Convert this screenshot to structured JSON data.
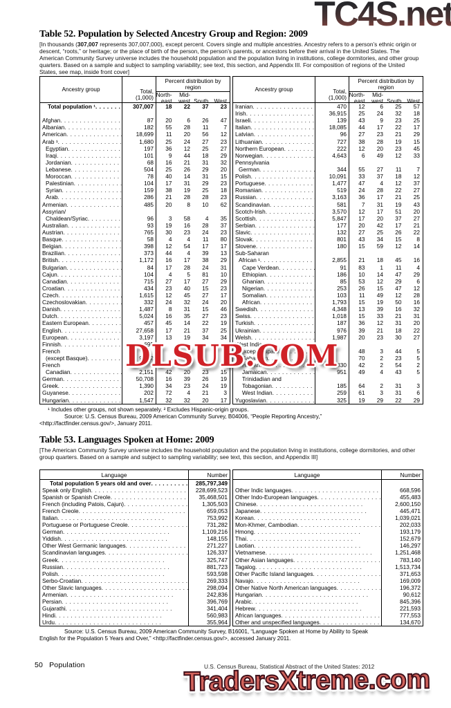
{
  "watermarks": {
    "top": {
      "text": "TC4S.net",
      "color": "#3a3a3a"
    },
    "middle": {
      "text": "DLSUB.COM",
      "color": "#cf2127"
    },
    "bottom": {
      "text": "TradersXtreme.com",
      "color": "#d2635c"
    }
  },
  "table52": {
    "title": "Table 52. Population by Selected Ancestry Group and Region: 2009",
    "note_pre": "[In thousands (",
    "note_bold": "307,007",
    "note_post": " represents 307,007,000), except percent. Covers single and multiple ancestries. Ancestry refers to a person’s ethnic origin or descent, “roots,” or heritage; or the place of birth of the person, the person’s parents, or ancestors before their arrival in the United States. The American Community Survey universe includes the household population and the population living in institutions, college dormitories, and other group quarters. Based on a sample and subject to sampling variability; see text, this section, and Appendix III. For composition of regions of the United States, see map, inside front cover]",
    "headers": {
      "group": "Ancestry group",
      "total_l1": "Total,",
      "total_l2": "(1,000)",
      "span": "Percent distribution by region",
      "regions": [
        [
          "North-",
          "east"
        ],
        [
          "Mid-",
          "west"
        ],
        [
          "",
          "South"
        ],
        [
          "",
          "West"
        ]
      ]
    },
    "left_rows": [
      {
        "l": "Total population ¹",
        "b": 1,
        "t": "307,007",
        "p": [
          "18",
          "22",
          "37",
          "23"
        ]
      },
      {
        "l": "",
        "lo": 1
      },
      {
        "l": "Afghan",
        "t": "87",
        "p": [
          "20",
          "6",
          "26",
          "47"
        ]
      },
      {
        "l": "Albanian",
        "t": "182",
        "p": [
          "55",
          "28",
          "11",
          "7"
        ]
      },
      {
        "l": "American",
        "t": "18,699",
        "p": [
          "11",
          "20",
          "56",
          "12"
        ]
      },
      {
        "l": "Arab ¹",
        "t": "1,680",
        "p": [
          "25",
          "24",
          "27",
          "23"
        ]
      },
      {
        "l": "Egyptian",
        "i": 1,
        "t": "197",
        "p": [
          "36",
          "12",
          "25",
          "27"
        ]
      },
      {
        "l": "Iraqi",
        "i": 1,
        "t": "101",
        "p": [
          "9",
          "44",
          "18",
          "29"
        ]
      },
      {
        "l": "Jordanian",
        "i": 1,
        "t": "68",
        "p": [
          "16",
          "21",
          "31",
          "32"
        ]
      },
      {
        "l": "Lebanese",
        "i": 1,
        "t": "504",
        "p": [
          "25",
          "26",
          "29",
          "20"
        ]
      },
      {
        "l": "Moroccan",
        "i": 1,
        "t": "78",
        "p": [
          "40",
          "14",
          "31",
          "15"
        ]
      },
      {
        "l": "Palestinian",
        "i": 1,
        "t": "104",
        "p": [
          "17",
          "31",
          "29",
          "23"
        ]
      },
      {
        "l": "Syrian",
        "i": 1,
        "t": "159",
        "p": [
          "38",
          "19",
          "25",
          "18"
        ]
      },
      {
        "l": "Arab",
        "i": 1,
        "t": "286",
        "p": [
          "21",
          "28",
          "28",
          "23"
        ]
      },
      {
        "l": "Armenian",
        "t": "485",
        "p": [
          "20",
          "8",
          "10",
          "62"
        ]
      },
      {
        "l": "Assyrian/",
        "lo": 1
      },
      {
        "l": "Chaldean/Syriac",
        "i": 1,
        "t": "96",
        "p": [
          "3",
          "58",
          "4",
          "35"
        ]
      },
      {
        "l": "Australian",
        "t": "93",
        "p": [
          "19",
          "16",
          "28",
          "37"
        ]
      },
      {
        "l": "Austrian",
        "t": "765",
        "p": [
          "30",
          "23",
          "24",
          "23"
        ]
      },
      {
        "l": "Basque",
        "t": "58",
        "p": [
          "4",
          "4",
          "11",
          "80"
        ]
      },
      {
        "l": "Belgian",
        "t": "398",
        "p": [
          "12",
          "54",
          "17",
          "17"
        ]
      },
      {
        "l": "Brazilian",
        "t": "373",
        "p": [
          "44",
          "4",
          "39",
          "13"
        ]
      },
      {
        "l": "British",
        "t": "1,172",
        "p": [
          "16",
          "17",
          "38",
          "29"
        ]
      },
      {
        "l": "Bulgarian",
        "t": "84",
        "p": [
          "17",
          "28",
          "24",
          "31"
        ]
      },
      {
        "l": "Cajun",
        "t": "104",
        "p": [
          "4",
          "5",
          "81",
          "10"
        ]
      },
      {
        "l": "Canadian",
        "t": "715",
        "p": [
          "27",
          "17",
          "27",
          "29"
        ]
      },
      {
        "l": "Croatian",
        "t": "434",
        "p": [
          "23",
          "40",
          "15",
          "23"
        ]
      },
      {
        "l": "Czech",
        "t": "1,615",
        "p": [
          "12",
          "45",
          "27",
          "17"
        ]
      },
      {
        "l": "Czechoslovakian",
        "t": "332",
        "p": [
          "24",
          "32",
          "24",
          "20"
        ]
      },
      {
        "l": "Danish",
        "t": "1,487",
        "p": [
          "8",
          "31",
          "15",
          "46"
        ]
      },
      {
        "l": "Dutch",
        "t": "5,024",
        "p": [
          "16",
          "35",
          "27",
          "23"
        ]
      },
      {
        "l": "Eastern European",
        "t": "457",
        "p": [
          "45",
          "14",
          "22",
          "19"
        ]
      },
      {
        "l": "English",
        "t": "27,658",
        "p": [
          "17",
          "21",
          "37",
          "25"
        ]
      },
      {
        "l": "European",
        "t": "3,197",
        "p": [
          "13",
          "19",
          "34",
          "34"
        ]
      },
      {
        "l": "Finnish",
        "t": "695",
        "p": [
          "",
          "",
          "",
          ""
        ]
      },
      {
        "l": "French",
        "lo": 1
      },
      {
        "l": "(except Basque)",
        "i": 1,
        "t": "9,412",
        "p": [
          "",
          "",
          "",
          ""
        ]
      },
      {
        "l": "French",
        "lo": 1
      },
      {
        "l": "Canadian",
        "i": 1,
        "t": "2,151",
        "p": [
          "42",
          "20",
          "23",
          "15"
        ]
      },
      {
        "l": "German",
        "t": "50,708",
        "p": [
          "16",
          "39",
          "26",
          "19"
        ]
      },
      {
        "l": "Greek",
        "t": "1,390",
        "p": [
          "34",
          "23",
          "24",
          "19"
        ]
      },
      {
        "l": "Guyanese",
        "t": "202",
        "p": [
          "72",
          "4",
          "21",
          "3"
        ]
      },
      {
        "l": "Hungarian",
        "t": "1,547",
        "p": [
          "32",
          "32",
          "20",
          "17"
        ]
      }
    ],
    "right_rows": [
      {
        "l": "Iranian",
        "t": "470",
        "p": [
          "12",
          "6",
          "25",
          "57"
        ]
      },
      {
        "l": "Irish",
        "t": "36,915",
        "p": [
          "25",
          "24",
          "32",
          "18"
        ]
      },
      {
        "l": "Israeli",
        "t": "139",
        "p": [
          "43",
          "9",
          "23",
          "25"
        ]
      },
      {
        "l": "Italian",
        "t": "18,085",
        "p": [
          "44",
          "17",
          "22",
          "17"
        ]
      },
      {
        "l": "Latvian",
        "t": "96",
        "p": [
          "27",
          "23",
          "21",
          "29"
        ]
      },
      {
        "l": "Lithuanian",
        "t": "727",
        "p": [
          "38",
          "28",
          "19",
          "15"
        ]
      },
      {
        "l": "Northern European",
        "t": "222",
        "p": [
          "12",
          "20",
          "23",
          "45"
        ]
      },
      {
        "l": "Norwegian",
        "t": "4,643",
        "p": [
          "6",
          "49",
          "12",
          "33"
        ]
      },
      {
        "l": "Pennsylvania",
        "lo": 1
      },
      {
        "l": "German",
        "i": 1,
        "t": "344",
        "p": [
          "55",
          "27",
          "11",
          "7"
        ]
      },
      {
        "l": "Polish",
        "t": "10,091",
        "p": [
          "33",
          "37",
          "18",
          "12"
        ]
      },
      {
        "l": "Portuguese",
        "t": "1,477",
        "p": [
          "47",
          "4",
          "12",
          "37"
        ]
      },
      {
        "l": "Romanian",
        "t": "519",
        "p": [
          "24",
          "28",
          "22",
          "27"
        ]
      },
      {
        "l": "Russian",
        "t": "3,163",
        "p": [
          "36",
          "17",
          "21",
          "25"
        ]
      },
      {
        "l": "Scandinavian",
        "t": "581",
        "p": [
          "7",
          "31",
          "19",
          "43"
        ]
      },
      {
        "l": "Scotch-Irish",
        "t": "3,570",
        "p": [
          "12",
          "17",
          "51",
          "20"
        ]
      },
      {
        "l": "Scottish",
        "t": "5,847",
        "p": [
          "17",
          "20",
          "37",
          "27"
        ]
      },
      {
        "l": "Serbian",
        "t": "177",
        "p": [
          "20",
          "42",
          "17",
          "21"
        ]
      },
      {
        "l": "Slavic",
        "t": "132",
        "p": [
          "27",
          "25",
          "26",
          "22"
        ]
      },
      {
        "l": "Slovak",
        "t": "801",
        "p": [
          "43",
          "34",
          "15",
          "8"
        ]
      },
      {
        "l": "Slovene",
        "t": "180",
        "p": [
          "15",
          "59",
          "12",
          "14"
        ]
      },
      {
        "l": "Sub-Saharan",
        "lo": 1
      },
      {
        "l": "African ¹",
        "i": 1,
        "t": "2,855",
        "p": [
          "21",
          "18",
          "45",
          "16"
        ]
      },
      {
        "l": "Cape Verdean",
        "i": 2,
        "t": "91",
        "p": [
          "83",
          "1",
          "11",
          "4"
        ]
      },
      {
        "l": "Ethiopian",
        "i": 2,
        "t": "186",
        "p": [
          "10",
          "14",
          "47",
          "29"
        ]
      },
      {
        "l": "Ghanian",
        "i": 2,
        "t": "85",
        "p": [
          "53",
          "12",
          "29",
          "6"
        ]
      },
      {
        "l": "Nigerian",
        "i": 2,
        "t": "253",
        "p": [
          "26",
          "15",
          "47",
          "12"
        ]
      },
      {
        "l": "Somalian",
        "i": 2,
        "t": "103",
        "p": [
          "11",
          "49",
          "12",
          "28"
        ]
      },
      {
        "l": "African",
        "i": 2,
        "t": "1,793",
        "p": [
          "15",
          "19",
          "50",
          "16"
        ]
      },
      {
        "l": "Swedish",
        "t": "4,348",
        "p": [
          "13",
          "39",
          "16",
          "32"
        ]
      },
      {
        "l": "Swiss",
        "t": "1,018",
        "p": [
          "15",
          "33",
          "21",
          "31"
        ]
      },
      {
        "l": "Turkish",
        "t": "187",
        "p": [
          "36",
          "12",
          "31",
          "20"
        ]
      },
      {
        "l": "Ukrainian",
        "t": "976",
        "p": [
          "39",
          "21",
          "18",
          "22"
        ]
      },
      {
        "l": "Welsh",
        "t": "1,987",
        "p": [
          "20",
          "23",
          "30",
          "27"
        ]
      },
      {
        "l": "West Indian",
        "lo": 1
      },
      {
        "l": "(except Hispanic) ²",
        "i": 1,
        "t": "",
        "p": [
          "48",
          "3",
          "44",
          "5"
        ]
      },
      {
        "l": "Bahamian",
        "i": 2,
        "t": "",
        "p": [
          "70",
          "2",
          "23",
          "5"
        ]
      },
      {
        "l": "Haitian",
        "i": 2,
        "t": "830",
        "p": [
          "42",
          "2",
          "54",
          "2"
        ]
      },
      {
        "l": "Jamaican",
        "i": 2,
        "t": "951",
        "p": [
          "49",
          "4",
          "43",
          "5"
        ]
      },
      {
        "l": "Trinidadian and",
        "lo": 1,
        "i": 2
      },
      {
        "l": "Tobagonian",
        "i": 2,
        "t": "185",
        "p": [
          "64",
          "2",
          "31",
          "3"
        ]
      },
      {
        "l": "West Indian",
        "i": 2,
        "t": "259",
        "p": [
          "61",
          "3",
          "31",
          "6"
        ]
      },
      {
        "l": "Yugoslavian",
        "t": "325",
        "p": [
          "19",
          "29",
          "22",
          "29"
        ]
      }
    ],
    "footnote": "¹ Includes other groups, not shown separately.  ² Excludes Hispanic-origin groups.",
    "source_l1": "Source: U.S. Census Bureau, 2009 American Community Survey, B04006, “People Reporting Ancestry,”",
    "source_l2": "<http://factfinder.census.gov/>, January 2011."
  },
  "table53": {
    "title": "Table 53. Languages Spoken at Home: 2009",
    "note": "[The American Community Survey universe includes the household population and the population living in institutions, college dormitories, and other group quarters. Based on a sample and subject to sampling variability; see text, this section, and Appendix III]",
    "headers": {
      "language": "Language",
      "number": "Number"
    },
    "left_rows": [
      {
        "l": "Total population 5 years old and over",
        "b": 1,
        "n": "285,797,349"
      },
      {
        "l": "Speak only English",
        "n": "228,699,523"
      },
      {
        "l": "Spanish or Spanish Creole",
        "n": "35,468,501"
      },
      {
        "l": "French (including Patois, Cajun)",
        "n": "1,305,503"
      },
      {
        "l": "French Creole",
        "n": "659,053"
      },
      {
        "l": "Italian",
        "n": "753,992"
      },
      {
        "l": "Portuguese or Portuguese Creole",
        "n": "731,282"
      },
      {
        "l": "German",
        "n": "1,109,216"
      },
      {
        "l": "Yiddish",
        "n": "148,155"
      },
      {
        "l": "Other West Germanic languages",
        "n": "271,227"
      },
      {
        "l": "Scandinavian languages",
        "n": "126,337"
      },
      {
        "l": "Greek",
        "n": "325,747"
      },
      {
        "l": "Russian",
        "n": "881,723"
      },
      {
        "l": "Polish",
        "n": "593,598"
      },
      {
        "l": "Serbo-Croatian",
        "n": "269,333"
      },
      {
        "l": "Other Slavic languages",
        "n": "298,094"
      },
      {
        "l": "Armenian",
        "n": "242,836"
      },
      {
        "l": "Persian",
        "n": "396,769"
      },
      {
        "l": "Gujarathi",
        "n": "341,404"
      },
      {
        "l": "Hindi",
        "n": "560,983"
      },
      {
        "l": "Urdu",
        "n": "355,964"
      }
    ],
    "right_rows": [
      {
        "l": "",
        "lo": 1
      },
      {
        "l": "Other Indic languages",
        "n": "668,596"
      },
      {
        "l": "Other Indo-European languages",
        "n": "455,483"
      },
      {
        "l": "Chinese",
        "n": "2,600,150"
      },
      {
        "l": "Japanese",
        "n": "445,471"
      },
      {
        "l": "Korean",
        "n": "1,039,021"
      },
      {
        "l": "Mon-Khmer, Cambodian",
        "n": "202,033"
      },
      {
        "l": "Hmong",
        "n": "193,179"
      },
      {
        "l": "Thai",
        "n": "152,679"
      },
      {
        "l": "Laotian",
        "n": "146,297"
      },
      {
        "l": "Vietnamese",
        "n": "1,251,468"
      },
      {
        "l": "Other Asian languages",
        "n": "783,140"
      },
      {
        "l": "Tagalog",
        "n": "1,513,734"
      },
      {
        "l": "Other Pacific Island languages",
        "n": "371,653"
      },
      {
        "l": "Navajo",
        "n": "169,009"
      },
      {
        "l": "Other Native North American languages",
        "n": "196,372"
      },
      {
        "l": "Hungarian",
        "n": "90,612"
      },
      {
        "l": "Arabic",
        "n": "845,396"
      },
      {
        "l": "Hebrew",
        "n": "221,593"
      },
      {
        "l": "African languages",
        "n": "777,553"
      },
      {
        "l": "Other and unspecified languages",
        "n": "134,670"
      }
    ],
    "source_l1": "Source: U.S. Census Bureau, 2009 American Community Survey, B16001, “Language Spoken at Home by Ability to Speak",
    "source_l2": "English for the Population 5 Years and Over,” <http://factfinder.census.gov/>, accessed January 2011."
  },
  "footer": {
    "page_number": "50",
    "section": "Population",
    "right": "U.S. Census Bureau, Statistical Abstract of the United States: 2012"
  }
}
